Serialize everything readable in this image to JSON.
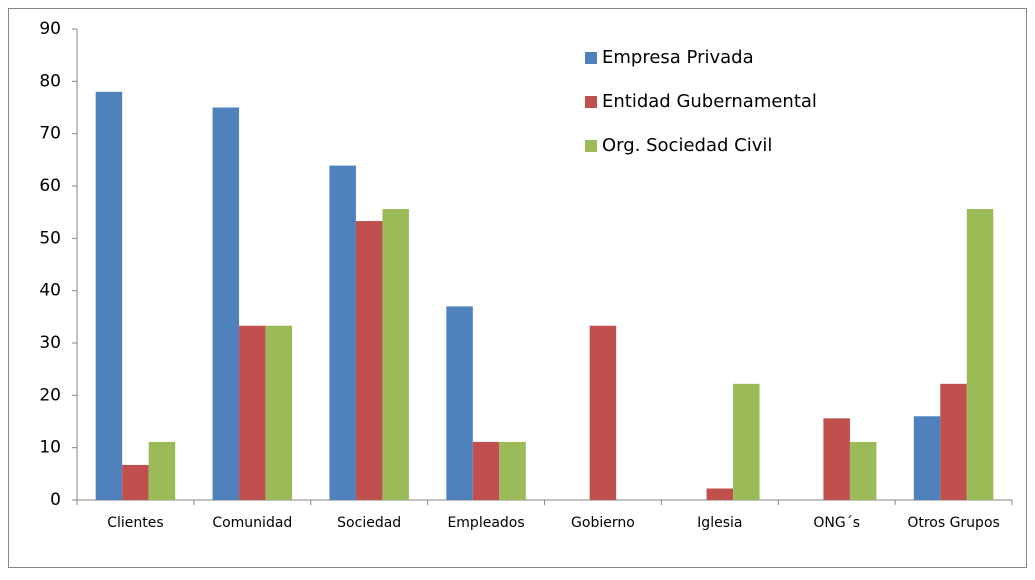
{
  "chart_data": {
    "type": "bar",
    "categories": [
      "Clientes",
      "Comunidad",
      "Sociedad",
      "Empleados",
      "Gobierno",
      "Iglesia",
      "ONG´s",
      "Otros Grupos"
    ],
    "series": [
      {
        "name": "Empresa Privada",
        "color": "#4f81bd",
        "values": [
          78,
          75,
          63.9,
          37,
          0,
          0,
          0,
          16
        ]
      },
      {
        "name": "Entidad Gubernamental",
        "color": "#c0504d",
        "values": [
          6.7,
          33.3,
          53.3,
          11.1,
          33.3,
          2.2,
          15.6,
          22.2
        ]
      },
      {
        "name": "Org. Sociedad Civil",
        "color": "#9bbb59",
        "values": [
          11.1,
          33.3,
          55.6,
          11.1,
          0,
          22.2,
          11.1,
          55.6
        ]
      }
    ],
    "ylim": [
      0,
      90
    ],
    "yticks": [
      0,
      10,
      20,
      30,
      40,
      50,
      60,
      70,
      80,
      90
    ],
    "grid": false,
    "legend": "top-right"
  }
}
